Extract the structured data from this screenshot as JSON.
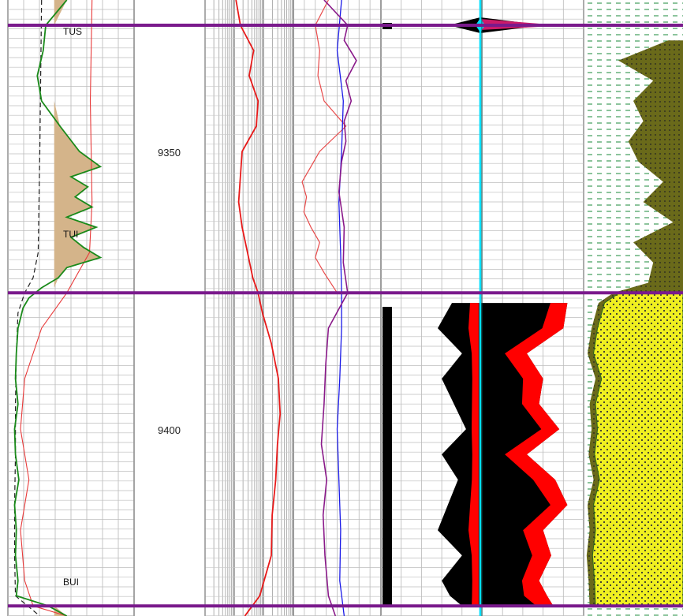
{
  "colors": {
    "formation_top": "#7a1a8c",
    "gamma_ray": "#1a8a1a",
    "caliper": "#222222",
    "sp": "#e83a3a",
    "resistivity": "#e81a1a",
    "density": "#e84a4a",
    "neutron": "#1a1ae8",
    "sonic": "#8a1a8a",
    "shale_fill": "#d4b48a",
    "sand_fill": "#f0f020",
    "shale_lith": "#6a6a1a",
    "hydrocarbon": "#000000",
    "moveable": "#ff0000",
    "water": "#00e0ff"
  },
  "chart_data": {
    "type": "line",
    "title": "",
    "xlabel": "",
    "ylabel": "",
    "depth_range": [
      9310,
      9432
    ],
    "depth_ticks": [
      9350,
      9400
    ],
    "formation_tops": [
      {
        "name": "TUS",
        "depth": 9315
      },
      {
        "name": "TUI",
        "depth": 9368
      },
      {
        "name": "BUI",
        "depth": 9430
      }
    ],
    "tracks": [
      {
        "name": "gamma_ray",
        "range": [
          0,
          150
        ],
        "curves": [
          {
            "key": "gr",
            "depth": [
              9310,
              9315,
              9320,
              9325,
              9330,
              9335,
              9340,
              9343,
              9345,
              9347,
              9349,
              9351,
              9353,
              9355,
              9357,
              9359,
              9361,
              9363,
              9365,
              9367,
              9369,
              9371,
              9375,
              9380,
              9385,
              9390,
              9395,
              9400,
              9405,
              9410,
              9415,
              9420,
              9425,
              9428,
              9430,
              9432
            ],
            "values": [
              70,
              45,
              42,
              35,
              40,
              62,
              85,
              110,
              75,
              95,
              80,
              100,
              70,
              105,
              75,
              90,
              110,
              70,
              60,
              40,
              25,
              18,
              12,
              10,
              9,
              12,
              8,
              9,
              13,
              8,
              10,
              9,
              12,
              10,
              48,
              70
            ]
          },
          {
            "key": "caliper",
            "depth": [
              9310,
              9340,
              9360,
              9365,
              9368,
              9372,
              9380,
              9390,
              9400,
              9410,
              9420,
              9428,
              9432
            ],
            "values": [
              40,
              38,
              36,
              30,
              20,
              12,
              10,
              9,
              9,
              8,
              8,
              9,
              38
            ]
          },
          {
            "key": "sp",
            "depth": [
              9310,
              9330,
              9350,
              9360,
              9368,
              9375,
              9385,
              9395,
              9405,
              9415,
              9425,
              9430,
              9432
            ],
            "values": [
              100,
              98,
              100,
              97,
              70,
              40,
              20,
              15,
              25,
              15,
              20,
              30,
              70
            ]
          }
        ]
      },
      {
        "name": "depth",
        "range": [
          0,
          1
        ],
        "curves": []
      },
      {
        "name": "resistivity",
        "range": [
          0,
          100
        ],
        "curves": [
          {
            "key": "rt",
            "depth": [
              9310,
              9315,
              9320,
              9325,
              9330,
              9335,
              9340,
              9345,
              9350,
              9355,
              9360,
              9365,
              9368,
              9372,
              9378,
              9385,
              9392,
              9398,
              9405,
              9412,
              9420,
              9428,
              9432
            ],
            "values": [
              35,
              40,
              55,
              50,
              60,
              58,
              42,
              40,
              38,
              42,
              48,
              54,
              60,
              65,
              75,
              83,
              85,
              82,
              80,
              76,
              75,
              62,
              45
            ]
          }
        ]
      },
      {
        "name": "porosity",
        "range": [
          0,
          100
        ],
        "curves": [
          {
            "key": "density",
            "depth": [
              9310,
              9315,
              9320,
              9325,
              9330,
              9335,
              9340,
              9343,
              9346,
              9349,
              9352,
              9355,
              9358,
              9361,
              9364,
              9368
            ],
            "values": [
              40,
              25,
              30,
              28,
              35,
              60,
              30,
              20,
              10,
              15,
              12,
              20,
              30,
              25,
              35,
              50
            ]
          },
          {
            "key": "neutron",
            "depth": [
              9310,
              9320,
              9330,
              9340,
              9350,
              9360,
              9368,
              9375,
              9385,
              9395,
              9405,
              9415,
              9425,
              9432
            ],
            "values": [
              55,
              50,
              57,
              55,
              52,
              54,
              55,
              55,
              53,
              50,
              52,
              54,
              53,
              58
            ]
          },
          {
            "key": "sonic",
            "depth": [
              9310,
              9315,
              9318,
              9322,
              9326,
              9330,
              9334,
              9338,
              9342,
              9348,
              9355,
              9362,
              9368,
              9375,
              9382,
              9390,
              9398,
              9405,
              9412,
              9420,
              9428,
              9432
            ],
            "values": [
              35,
              62,
              58,
              72,
              60,
              66,
              58,
              60,
              55,
              52,
              58,
              57,
              62,
              40,
              37,
              35,
              32,
              38,
              34,
              36,
              40,
              48
            ]
          }
        ]
      },
      {
        "name": "saturation",
        "range": [
          0,
          100
        ],
        "curves": [
          {
            "key": "bulk_volume_left",
            "depth": [
              9370,
              9375,
              9380,
              9385,
              9390,
              9395,
              9400,
              9405,
              9410,
              9415,
              9420,
              9425,
              9428,
              9430
            ],
            "values": [
              35,
              28,
              40,
              30,
              36,
              42,
              30,
              38,
              33,
              28,
              40,
              30,
              34,
              40
            ]
          },
          {
            "key": "moveable_edge",
            "depth": [
              9370,
              9375,
              9380,
              9385,
              9390,
              9395,
              9400,
              9405,
              9410,
              9415,
              9420,
              9425,
              9428,
              9430
            ],
            "values": [
              92,
              90,
              72,
              80,
              78,
              88,
              72,
              86,
              92,
              80,
              84,
              78,
              82,
              85
            ]
          }
        ]
      },
      {
        "name": "lithology",
        "range": [
          0,
          100
        ],
        "curves": [
          {
            "key": "sand_fraction",
            "depth": [
              9318,
              9322,
              9326,
              9330,
              9334,
              9338,
              9342,
              9346,
              9350,
              9354,
              9358,
              9362,
              9366,
              9368,
              9370,
              9375,
              9380,
              9385,
              9390,
              9395,
              9400,
              9405,
              9410,
              9415,
              9420,
              9425,
              9430
            ],
            "values": [
              85,
              35,
              70,
              50,
              60,
              45,
              55,
              80,
              60,
              90,
              50,
              70,
              65,
              30,
              15,
              8,
              4,
              12,
              6,
              8,
              5,
              10,
              4,
              6,
              3,
              5,
              6
            ]
          }
        ]
      }
    ]
  },
  "labels": {
    "depth_9350": "9350",
    "depth_9400": "9400",
    "top_tus": "TUS",
    "top_tui": "TUI",
    "top_bui": "BUI"
  }
}
